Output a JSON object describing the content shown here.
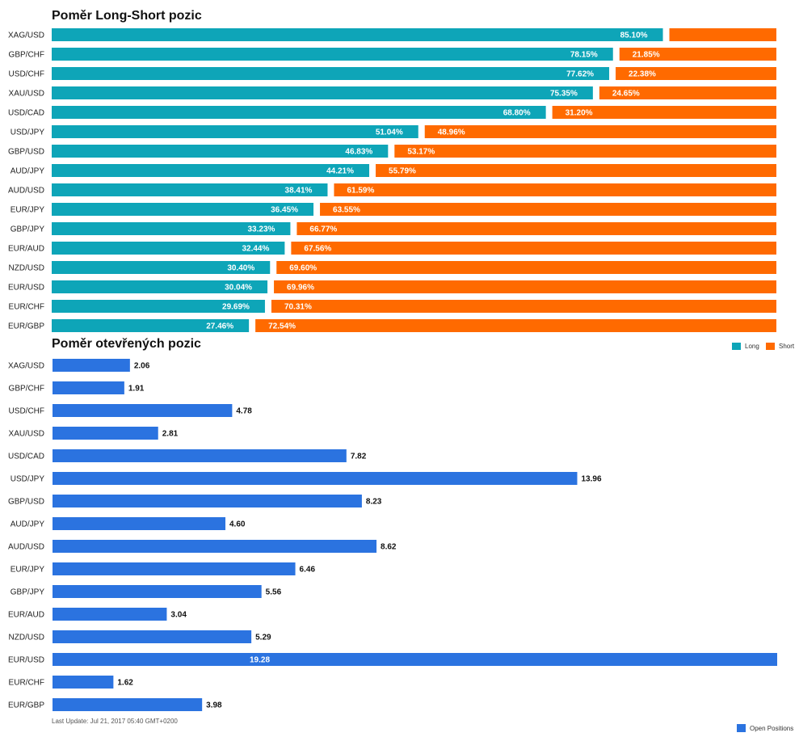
{
  "chart_data": [
    {
      "type": "bar",
      "orientation": "horizontal",
      "stacked": true,
      "title": "Poměr Long-Short pozic",
      "categories": [
        "XAG/USD",
        "GBP/CHF",
        "USD/CHF",
        "XAU/USD",
        "USD/CAD",
        "USD/JPY",
        "GBP/USD",
        "AUD/JPY",
        "AUD/USD",
        "EUR/JPY",
        "GBP/JPY",
        "EUR/AUD",
        "NZD/USD",
        "EUR/USD",
        "EUR/CHF",
        "EUR/GBP"
      ],
      "series": [
        {
          "name": "Long",
          "color": "#0ea5b8",
          "values": [
            85.1,
            78.15,
            77.62,
            75.35,
            68.8,
            51.04,
            46.83,
            44.21,
            38.41,
            36.45,
            33.23,
            32.44,
            30.4,
            30.04,
            29.69,
            27.46
          ],
          "labels": [
            "85.10%",
            "78.15%",
            "77.62%",
            "75.35%",
            "68.80%",
            "51.04%",
            "46.83%",
            "44.21%",
            "38.41%",
            "36.45%",
            "33.23%",
            "32.44%",
            "30.40%",
            "30.04%",
            "29.69%",
            "27.46%"
          ]
        },
        {
          "name": "Short",
          "color": "#ff6a00",
          "values": [
            14.9,
            21.85,
            22.38,
            24.65,
            31.2,
            48.96,
            53.17,
            55.79,
            61.59,
            63.55,
            66.77,
            67.56,
            69.6,
            69.96,
            70.31,
            72.54
          ],
          "labels": [
            "",
            "21.85%",
            "22.38%",
            "24.65%",
            "31.20%",
            "48.96%",
            "53.17%",
            "55.79%",
            "61.59%",
            "63.55%",
            "66.77%",
            "67.56%",
            "69.60%",
            "69.96%",
            "70.31%",
            "72.54%"
          ]
        }
      ],
      "xlim": [
        0,
        100
      ],
      "legend_position": "bottom-right"
    },
    {
      "type": "bar",
      "orientation": "horizontal",
      "title": "Poměr otevřených pozic",
      "categories": [
        "XAG/USD",
        "GBP/CHF",
        "USD/CHF",
        "XAU/USD",
        "USD/CAD",
        "USD/JPY",
        "GBP/USD",
        "AUD/JPY",
        "AUD/USD",
        "EUR/JPY",
        "GBP/JPY",
        "EUR/AUD",
        "NZD/USD",
        "EUR/USD",
        "EUR/CHF",
        "EUR/GBP"
      ],
      "series": [
        {
          "name": "Open Positions",
          "color": "#2b73e0",
          "values": [
            2.06,
            1.91,
            4.78,
            2.81,
            7.82,
            13.96,
            8.23,
            4.6,
            8.62,
            6.46,
            5.56,
            3.04,
            5.29,
            19.28,
            1.62,
            3.98
          ],
          "labels": [
            "2.06",
            "1.91",
            "4.78",
            "2.81",
            "7.82",
            "13.96",
            "8.23",
            "4.60",
            "8.62",
            "6.46",
            "5.56",
            "3.04",
            "5.29",
            "19.28",
            "1.62",
            "3.98"
          ]
        }
      ],
      "xlim": [
        0,
        19.28
      ],
      "legend_position": "bottom-right"
    }
  ],
  "footer": {
    "last_update": "Last Update: Jul 21, 2017 05:40 GMT+0200"
  }
}
